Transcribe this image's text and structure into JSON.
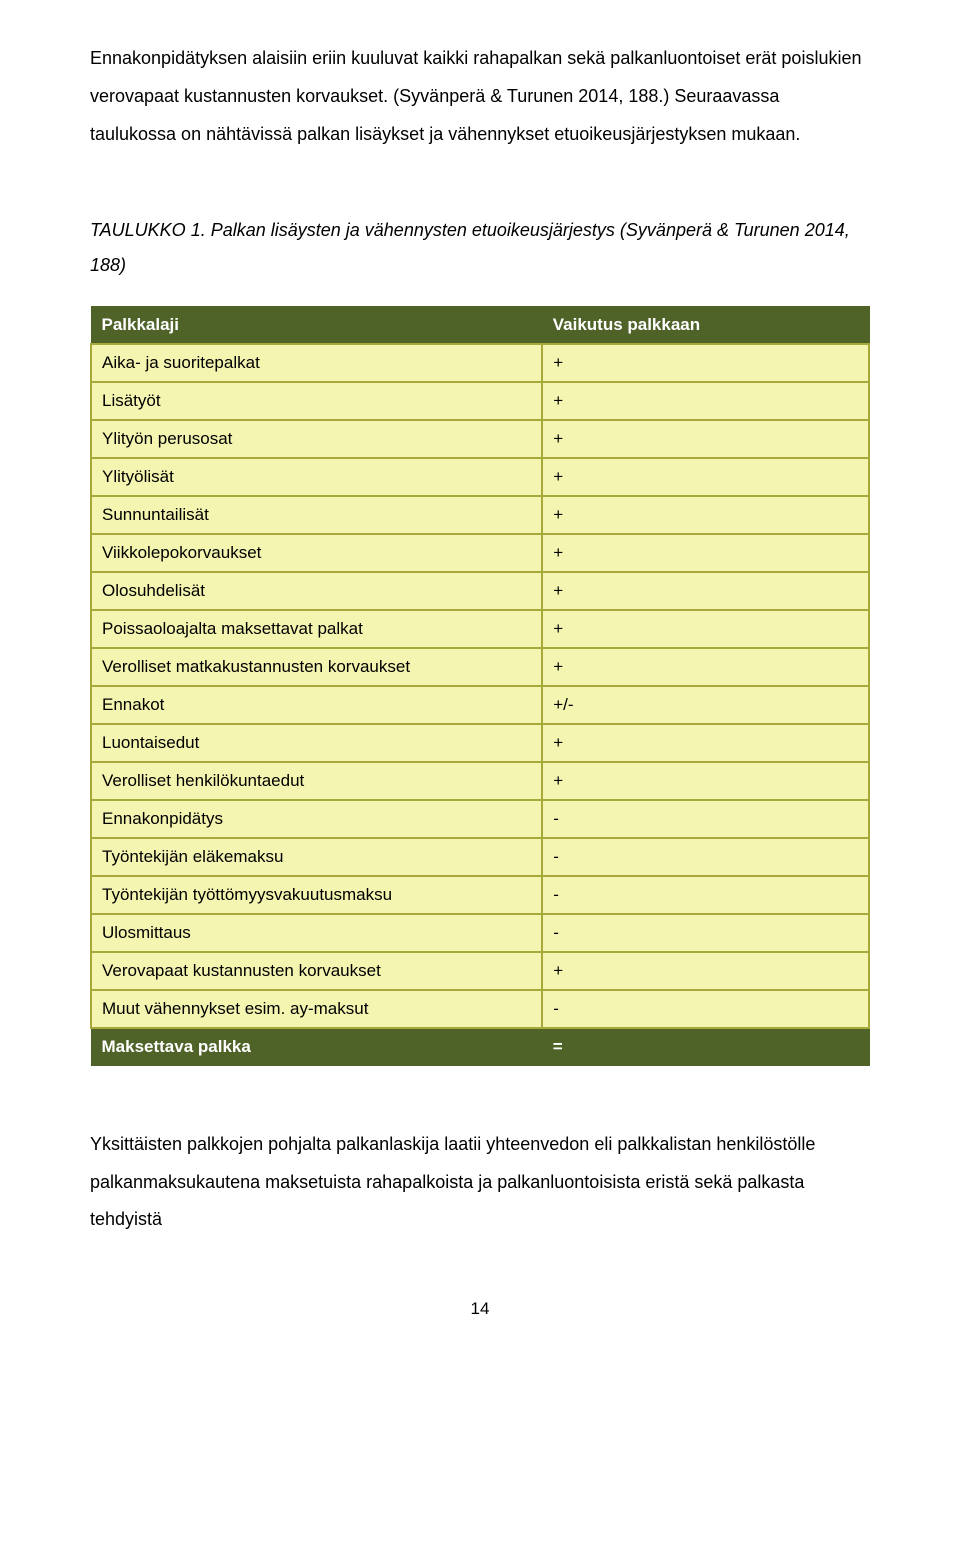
{
  "intro": {
    "p1": "Ennakonpidätyksen alaisiin eriin kuuluvat kaikki rahapalkan sekä palkanluontoiset erät poislukien verovapaat kustannusten korvaukset. (Syvänperä & Turunen 2014, 188.) Seuraavassa taulukossa on nähtävissä palkan lisäykset ja vähennykset etuoikeusjärjestyksen mukaan."
  },
  "caption": "TAULUKKO 1. Palkan lisäysten ja vähennysten etuoikeusjärjestys (Syvänperä & Turunen 2014, 188)",
  "table": {
    "colors": {
      "header_bg": "#4f6228",
      "row_bg": "#f4f5b0",
      "row_border": "#a6a83a",
      "header_text": "#ffffff",
      "cell_text": "#000000"
    },
    "col_widths": [
      "58%",
      "42%"
    ],
    "header": {
      "c1": "Palkkalaji",
      "c2": "Vaikutus palkkaan"
    },
    "rows": [
      {
        "c1": "Aika- ja suoritepalkat",
        "c2": "+"
      },
      {
        "c1": "Lisätyöt",
        "c2": "+"
      },
      {
        "c1": "Ylityön perusosat",
        "c2": "+"
      },
      {
        "c1": "Ylityölisät",
        "c2": "+"
      },
      {
        "c1": "Sunnuntailisät",
        "c2": "+"
      },
      {
        "c1": "Viikkolepokorvaukset",
        "c2": "+"
      },
      {
        "c1": "Olosuhdelisät",
        "c2": "+"
      },
      {
        "c1": "Poissaoloajalta maksettavat palkat",
        "c2": "+"
      },
      {
        "c1": "Verolliset matkakustannusten korvaukset",
        "c2": "+"
      },
      {
        "c1": "Ennakot",
        "c2": "+/-"
      },
      {
        "c1": "Luontaisedut",
        "c2": "+"
      },
      {
        "c1": "Verolliset henkilökuntaedut",
        "c2": "+"
      },
      {
        "c1": "Ennakonpidätys",
        "c2": "-"
      },
      {
        "c1": "Työntekijän eläkemaksu",
        "c2": "-"
      },
      {
        "c1": "Työntekijän työttömyysvakuutusmaksu",
        "c2": "-"
      },
      {
        "c1": "Ulosmittaus",
        "c2": "-"
      },
      {
        "c1": "Verovapaat kustannusten korvaukset",
        "c2": "+"
      },
      {
        "c1": "Muut vähennykset esim. ay-maksut",
        "c2": "-"
      }
    ],
    "footer": {
      "c1": "Maksettava palkka",
      "c2": "="
    }
  },
  "outro": {
    "p1": "Yksittäisten palkkojen pohjalta palkanlaskija laatii yhteenvedon eli palkkalistan henkilöstölle palkanmaksukautena maksetuista rahapalkoista ja palkanluontoisista eristä sekä palkasta tehdyistä"
  },
  "page_number": "14"
}
